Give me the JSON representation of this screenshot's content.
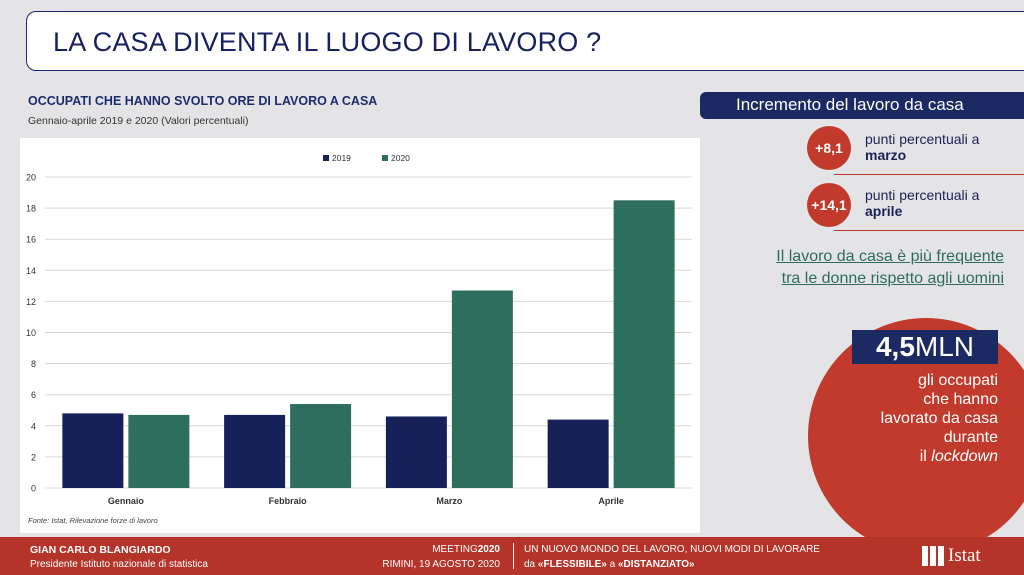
{
  "title": "LA CASA DIVENTA IL LUOGO DI LAVORO ?",
  "chart_heading": "OCCUPATI CHE HANNO SVOLTO ORE DI LAVORO A CASA",
  "chart_subheading": "Gennaio-aprile 2019 e 2020 (Valori percentuali)",
  "source_note": "Fonte: Istat, Rilevazione forze di lavoro",
  "chart_data": {
    "type": "bar",
    "categories": [
      "Gennaio",
      "Febbraio",
      "Marzo",
      "Aprile"
    ],
    "series": [
      {
        "name": "2019",
        "color": "#16215a",
        "values": [
          4.8,
          4.7,
          4.6,
          4.4
        ]
      },
      {
        "name": "2020",
        "color": "#2e6e5e",
        "values": [
          4.7,
          5.4,
          12.7,
          18.5
        ]
      }
    ],
    "ylim": [
      0,
      20
    ],
    "yticks": [
      "0",
      "2",
      "4",
      "6",
      "8",
      "10",
      "12",
      "14",
      "16",
      "18",
      "20"
    ],
    "grid": true,
    "legend": "top"
  },
  "increment": {
    "title": "Incremento del lavoro da casa",
    "march": {
      "value": "+8,1",
      "text": "punti percentuali a",
      "month": "marzo"
    },
    "april": {
      "value": "+14,1",
      "text": "punti percentuali a",
      "month": "aprile"
    }
  },
  "women_line1": "Il lavoro da casa è più frequente",
  "women_line2": "tra le donne rispetto agli uomini",
  "lockdown": {
    "number": "4,5",
    "unit": "MLN",
    "line1": "gli occupati",
    "line2": "che hanno",
    "line3": "lavorato da casa",
    "line4": "durante",
    "line5_prefix": "il ",
    "line5_italic": "lockdown"
  },
  "footer": {
    "name": "GIAN CARLO BLANGIARDO",
    "role": "Presidente Istituto nazionale di statistica",
    "meeting_prefix": "MEETING",
    "meeting_year": "2020",
    "place_date": "RIMINI, 19 AGOSTO 2020",
    "topic_line1": "UN NUOVO MONDO DEL LAVORO, NUOVI MODI DI LAVORARE",
    "topic_da": "da ",
    "topic_flessibile": "«FLESSIBILE»",
    "topic_a": " a ",
    "topic_distanziato": "«DISTANZIATO»",
    "logo_text": "Istat"
  },
  "colors": {
    "accent_red": "#c23a2c",
    "navy": "#1c2a63",
    "green": "#2e6e5e"
  }
}
